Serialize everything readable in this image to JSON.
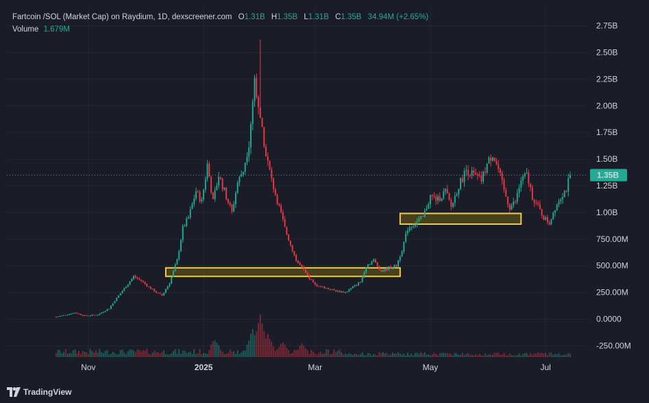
{
  "header": {
    "symbol": "Fartcoin /SOL (Market Cap) on Raydium, 1D, dexscreener.com",
    "open_label": "O",
    "open": "1.31B",
    "high_label": "H",
    "high": "1.35B",
    "low_label": "L",
    "low": "1.31B",
    "close_label": "C",
    "close": "1.35B",
    "change": "34.94M (+2.65%)",
    "volume_label": "Volume",
    "volume": "1.679M"
  },
  "price_tag": "1.35B",
  "brand": "TradingView",
  "colors": {
    "up": "#22ab94",
    "down": "#f23645",
    "zone_fill": "#6b5e14",
    "zone_stroke": "#f7c948",
    "bg": "#1a1d27"
  },
  "chart_data": {
    "type": "candlestick",
    "y_axis": {
      "ticks": [
        "2.75B",
        "2.50B",
        "2.25B",
        "2.00B",
        "1.75B",
        "1.50B",
        "1.25B",
        "1.00B",
        "750.00M",
        "500.00M",
        "250.00M",
        "0.0000",
        "-250.00M"
      ],
      "tick_values": [
        2.75,
        2.5,
        2.25,
        2.0,
        1.75,
        1.5,
        1.25,
        1.0,
        0.75,
        0.5,
        0.25,
        0.0,
        -0.25
      ],
      "unit": "B",
      "range": [
        -0.33,
        2.9
      ]
    },
    "x_axis": {
      "ticks": [
        "Nov",
        "2025",
        "Mar",
        "May",
        "Jul"
      ],
      "tick_days": [
        17,
        78,
        137,
        198,
        259
      ]
    },
    "last_close": 1.35,
    "total_days": 272,
    "close_path": [
      [
        0,
        0.02
      ],
      [
        10,
        0.06
      ],
      [
        15,
        0.03
      ],
      [
        22,
        0.04
      ],
      [
        28,
        0.1
      ],
      [
        33,
        0.22
      ],
      [
        38,
        0.33
      ],
      [
        41,
        0.4
      ],
      [
        45,
        0.36
      ],
      [
        49,
        0.3
      ],
      [
        53,
        0.25
      ],
      [
        56,
        0.22
      ],
      [
        60,
        0.34
      ],
      [
        64,
        0.55
      ],
      [
        67,
        0.85
      ],
      [
        70,
        0.95
      ],
      [
        74,
        1.2
      ],
      [
        77,
        1.1
      ],
      [
        80,
        1.45
      ],
      [
        83,
        1.1
      ],
      [
        86,
        1.35
      ],
      [
        89,
        1.2
      ],
      [
        93,
        1.0
      ],
      [
        96,
        1.28
      ],
      [
        99,
        1.4
      ],
      [
        102,
        1.65
      ],
      [
        105,
        2.25
      ],
      [
        108,
        1.9
      ],
      [
        111,
        1.55
      ],
      [
        114,
        1.3
      ],
      [
        118,
        1.05
      ],
      [
        121,
        0.85
      ],
      [
        124,
        0.7
      ],
      [
        127,
        0.55
      ],
      [
        130,
        0.48
      ],
      [
        133,
        0.4
      ],
      [
        137,
        0.32
      ],
      [
        141,
        0.3
      ],
      [
        145,
        0.28
      ],
      [
        149,
        0.26
      ],
      [
        153,
        0.25
      ],
      [
        157,
        0.3
      ],
      [
        161,
        0.35
      ],
      [
        164,
        0.5
      ],
      [
        168,
        0.55
      ],
      [
        172,
        0.45
      ],
      [
        176,
        0.48
      ],
      [
        180,
        0.5
      ],
      [
        183,
        0.65
      ],
      [
        186,
        0.85
      ],
      [
        190,
        0.9
      ],
      [
        194,
        0.95
      ],
      [
        198,
        1.15
      ],
      [
        202,
        1.12
      ],
      [
        206,
        1.2
      ],
      [
        209,
        1.05
      ],
      [
        213,
        1.25
      ],
      [
        217,
        1.4
      ],
      [
        221,
        1.35
      ],
      [
        225,
        1.3
      ],
      [
        228,
        1.45
      ],
      [
        231,
        1.55
      ],
      [
        234,
        1.4
      ],
      [
        237,
        1.2
      ],
      [
        240,
        1.05
      ],
      [
        243,
        1.1
      ],
      [
        246,
        1.3
      ],
      [
        249,
        1.35
      ],
      [
        252,
        1.15
      ],
      [
        255,
        1.05
      ],
      [
        258,
        0.95
      ],
      [
        261,
        0.9
      ],
      [
        264,
        1.05
      ],
      [
        267,
        1.15
      ],
      [
        270,
        1.22
      ],
      [
        272,
        1.35
      ]
    ],
    "zones": [
      {
        "start_day": 58,
        "end_day": 182,
        "low": 0.4,
        "high": 0.48
      },
      {
        "start_day": 182,
        "end_day": 246,
        "low": 0.89,
        "high": 0.99
      }
    ],
    "volume_peaks": [
      {
        "day": 84,
        "value": 0.35
      },
      {
        "day": 104,
        "value": 0.55
      },
      {
        "day": 108,
        "value": 0.85
      },
      {
        "day": 112,
        "value": 0.45
      },
      {
        "day": 120,
        "value": 0.3
      },
      {
        "day": 130,
        "value": 0.25
      }
    ]
  }
}
